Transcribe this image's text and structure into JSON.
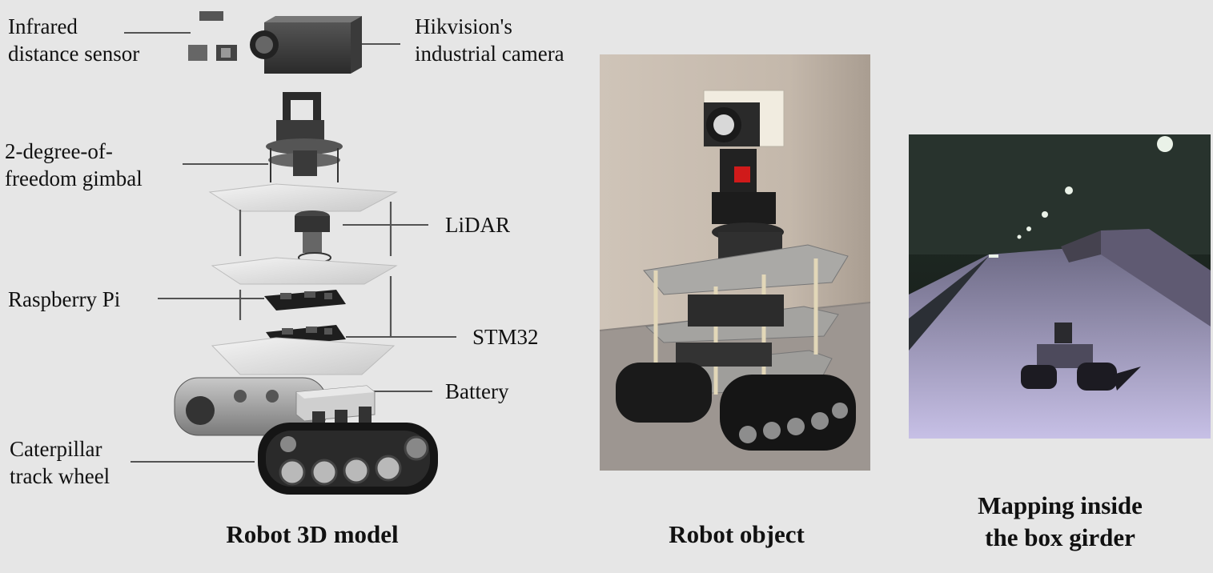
{
  "labels": {
    "infrared": "Infrared\ndistance sensor",
    "camera": "Hikvision's\nindustrial camera",
    "gimbal": "2-degree-of-\nfreedom gimbal",
    "lidar": "LiDAR",
    "raspberry": "Raspberry Pi",
    "stm32": "STM32",
    "battery": "Battery",
    "track": "Caterpillar\ntrack wheel"
  },
  "captions": {
    "model": "Robot 3D model",
    "object": "Robot object",
    "mapping": "Mapping inside\nthe box girder"
  }
}
